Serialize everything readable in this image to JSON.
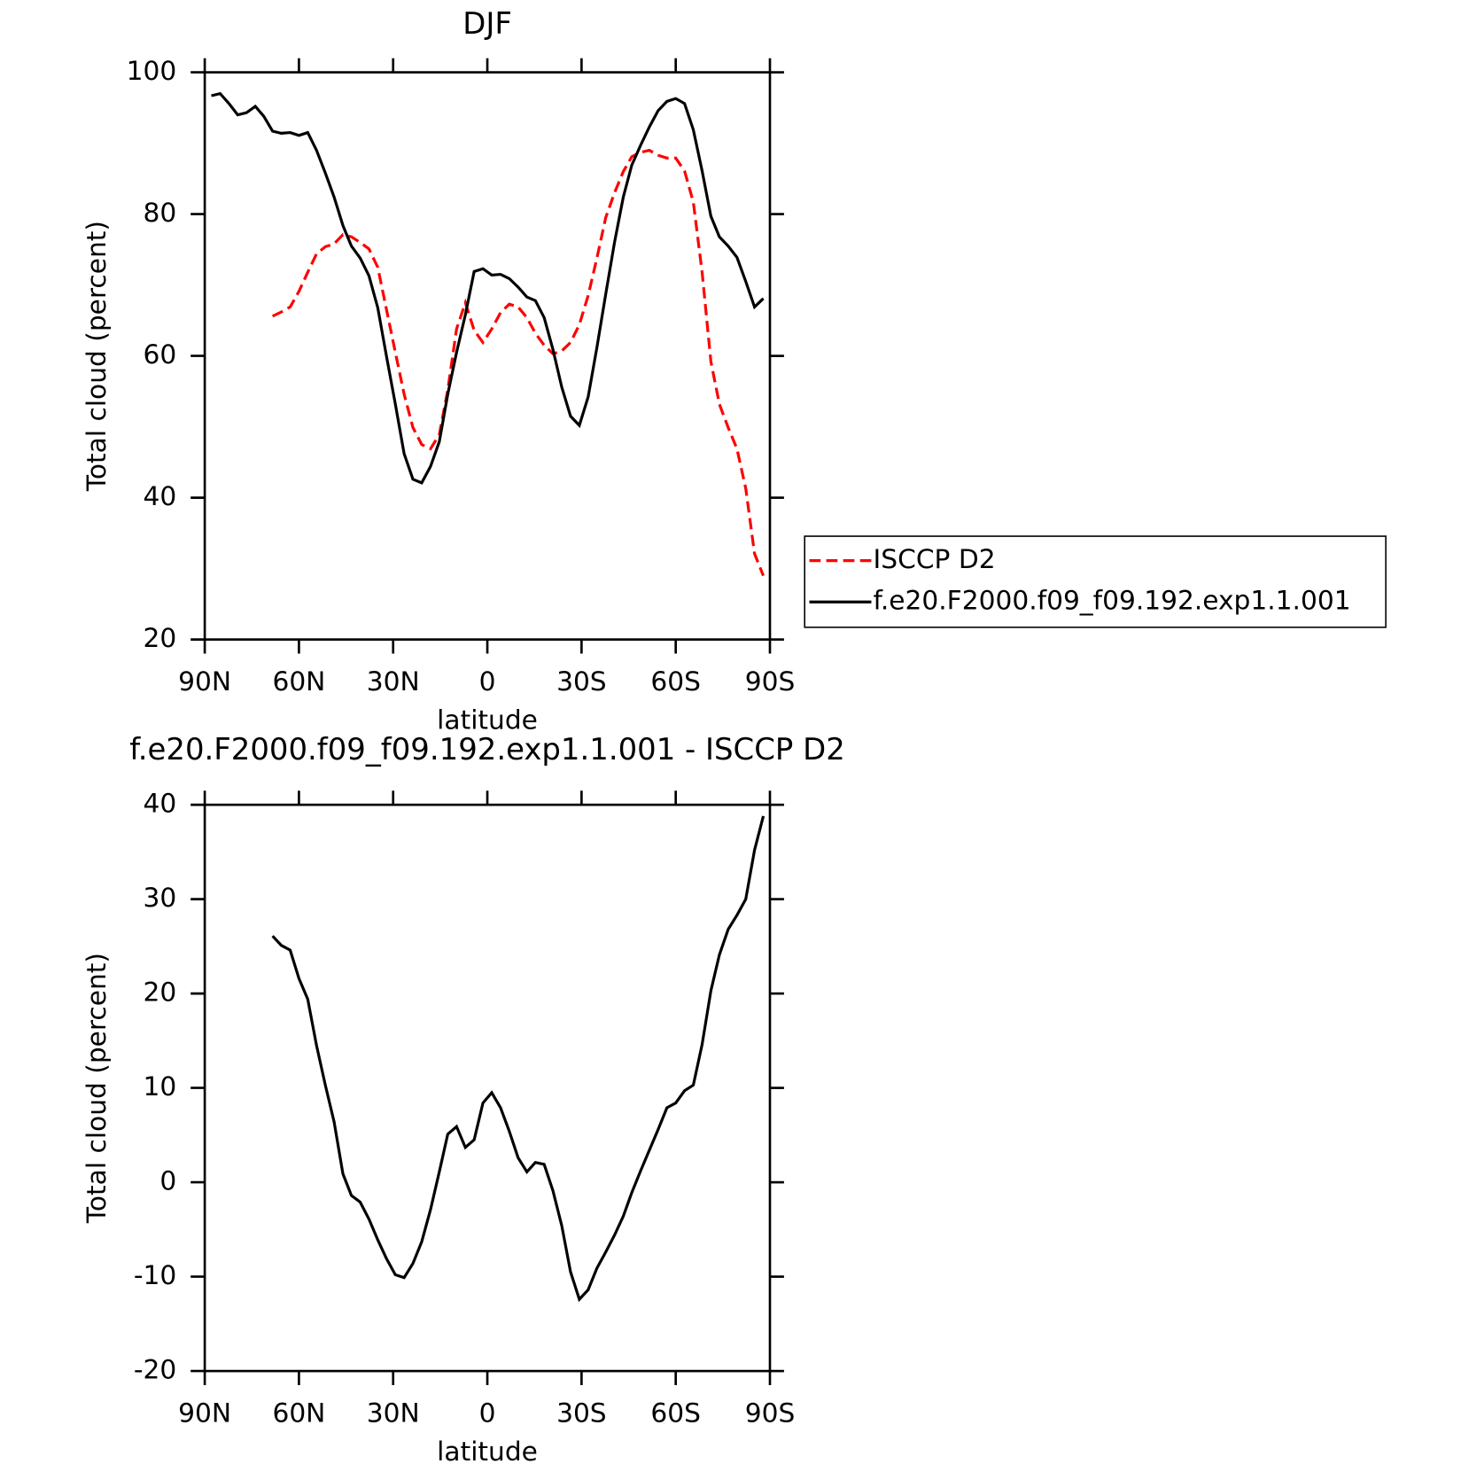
{
  "chart_data": [
    {
      "type": "line",
      "title": "DJF",
      "xlabel": "latitude",
      "ylabel": "Total cloud (percent)",
      "x": [
        87.9,
        85.1,
        82.3,
        79.5,
        76.7,
        73.9,
        71.2,
        68.4,
        65.6,
        62.8,
        60.0,
        57.2,
        54.4,
        51.6,
        48.8,
        46.0,
        43.3,
        40.5,
        37.7,
        34.9,
        32.1,
        29.3,
        26.5,
        23.7,
        20.9,
        18.1,
        15.3,
        12.6,
        9.8,
        7.0,
        4.2,
        1.4,
        -1.4,
        -4.2,
        -7.0,
        -9.8,
        -12.6,
        -15.3,
        -18.1,
        -20.9,
        -23.7,
        -26.5,
        -29.3,
        -32.1,
        -34.9,
        -37.7,
        -40.5,
        -43.3,
        -46.0,
        -48.8,
        -51.6,
        -54.4,
        -57.2,
        -60.0,
        -62.8,
        -65.6,
        -68.4,
        -71.2,
        -73.9,
        -76.7,
        -79.5,
        -82.3,
        -85.1,
        -87.9
      ],
      "xlim": [
        90,
        -90
      ],
      "xticks": [
        {
          "value": 90,
          "label": "90N"
        },
        {
          "value": 60,
          "label": "60N"
        },
        {
          "value": 30,
          "label": "30N"
        },
        0,
        {
          "value": -30,
          "label": "30S"
        },
        {
          "value": -60,
          "label": "60S"
        },
        {
          "value": -90,
          "label": "90S"
        }
      ],
      "ylim": [
        20,
        100
      ],
      "yticks": [
        20,
        40,
        60,
        80,
        100
      ],
      "legend": "outside-right",
      "series": [
        {
          "name": "ISCCP D2",
          "color": "#ff0000",
          "line_style": "dashed",
          "values": [
            null,
            null,
            null,
            null,
            null,
            null,
            null,
            65.6,
            66.2,
            66.9,
            69.1,
            71.8,
            74.4,
            75.4,
            75.8,
            77.1,
            76.8,
            76.0,
            75.1,
            72.5,
            66.5,
            60.5,
            54.6,
            49.9,
            47.5,
            46.9,
            48.9,
            55.2,
            63.8,
            67.5,
            63.6,
            61.9,
            63.8,
            66.1,
            67.3,
            66.9,
            65.4,
            63.2,
            61.5,
            60.3,
            60.7,
            61.9,
            64.4,
            68.5,
            73.8,
            79.5,
            83.0,
            86.0,
            88.1,
            88.7,
            89.0,
            88.3,
            87.9,
            87.9,
            86.1,
            81.7,
            71.8,
            59.2,
            53.2,
            49.9,
            46.9,
            41.3,
            32.1,
            29.0
          ]
        },
        {
          "name": "f.e20.F2000.f09_f09.192.exp1.1.001",
          "color": "#000000",
          "line_style": "solid",
          "values": [
            96.7,
            97.0,
            95.6,
            94.0,
            94.3,
            95.2,
            93.8,
            91.7,
            91.4,
            91.5,
            91.1,
            91.5,
            89,
            85.8,
            82.4,
            78.4,
            75.5,
            73.8,
            71.3,
            66.8,
            59.9,
            53.2,
            46.2,
            42.6,
            42.1,
            44.4,
            47.9,
            54.6,
            60.5,
            65.8,
            71.9,
            72.3,
            71.4,
            71.5,
            70.9,
            69.7,
            68.3,
            67.8,
            65.4,
            60.9,
            55.6,
            51.5,
            50.2,
            54.2,
            61.2,
            68.7,
            76.0,
            82.4,
            86.9,
            89.7,
            92.3,
            94.6,
            95.9,
            96.3,
            95.6,
            91.9,
            86.1,
            79.7,
            76.8,
            75.5,
            73.9,
            70.5,
            66.9,
            68.1
          ]
        }
      ]
    },
    {
      "type": "line",
      "title": "f.e20.F2000.f09_f09.192.exp1.1.001 - ISCCP D2",
      "xlabel": "latitude",
      "ylabel": "Total cloud (percent)",
      "x": [
        87.9,
        85.1,
        82.3,
        79.5,
        76.7,
        73.9,
        71.2,
        68.4,
        65.6,
        62.8,
        60.0,
        57.2,
        54.4,
        51.6,
        48.8,
        46.0,
        43.3,
        40.5,
        37.7,
        34.9,
        32.1,
        29.3,
        26.5,
        23.7,
        20.9,
        18.1,
        15.3,
        12.6,
        9.8,
        7.0,
        4.2,
        1.4,
        -1.4,
        -4.2,
        -7.0,
        -9.8,
        -12.6,
        -15.3,
        -18.1,
        -20.9,
        -23.7,
        -26.5,
        -29.3,
        -32.1,
        -34.9,
        -37.7,
        -40.5,
        -43.3,
        -46.0,
        -48.8,
        -51.6,
        -54.4,
        -57.2,
        -60.0,
        -62.8,
        -65.6,
        -68.4,
        -71.2,
        -73.9,
        -76.7,
        -79.5,
        -82.3,
        -85.1,
        -87.9
      ],
      "xlim": [
        90,
        -90
      ],
      "xticks": [
        {
          "value": 90,
          "label": "90N"
        },
        {
          "value": 60,
          "label": "60N"
        },
        {
          "value": 30,
          "label": "30N"
        },
        0,
        {
          "value": -30,
          "label": "30S"
        },
        {
          "value": -60,
          "label": "60S"
        },
        {
          "value": -90,
          "label": "90S"
        }
      ],
      "ylim": [
        -20,
        40
      ],
      "yticks": [
        -20,
        -10,
        0,
        10,
        20,
        30,
        40
      ],
      "series": [
        {
          "color": "#000000",
          "line_style": "solid",
          "values": [
            null,
            null,
            null,
            null,
            null,
            null,
            null,
            26.1,
            25.1,
            24.6,
            21.6,
            19.4,
            14.5,
            10.3,
            6.4,
            0.9,
            -1.4,
            -2.1,
            -3.9,
            -6.1,
            -8.1,
            -9.8,
            -10.1,
            -8.6,
            -6.3,
            -2.9,
            1.1,
            5.1,
            5.9,
            3.7,
            4.5,
            8.4,
            9.5,
            7.9,
            5.4,
            2.6,
            1.1,
            2.1,
            1.9,
            -0.9,
            -4.6,
            -9.5,
            -12.4,
            -11.4,
            -9.1,
            -7.4,
            -5.6,
            -3.6,
            -1.1,
            1.2,
            3.4,
            5.6,
            7.9,
            8.4,
            9.7,
            10.3,
            14.6,
            20.3,
            24.1,
            26.8,
            28.3,
            30.0,
            35.2,
            38.8
          ]
        }
      ]
    }
  ]
}
